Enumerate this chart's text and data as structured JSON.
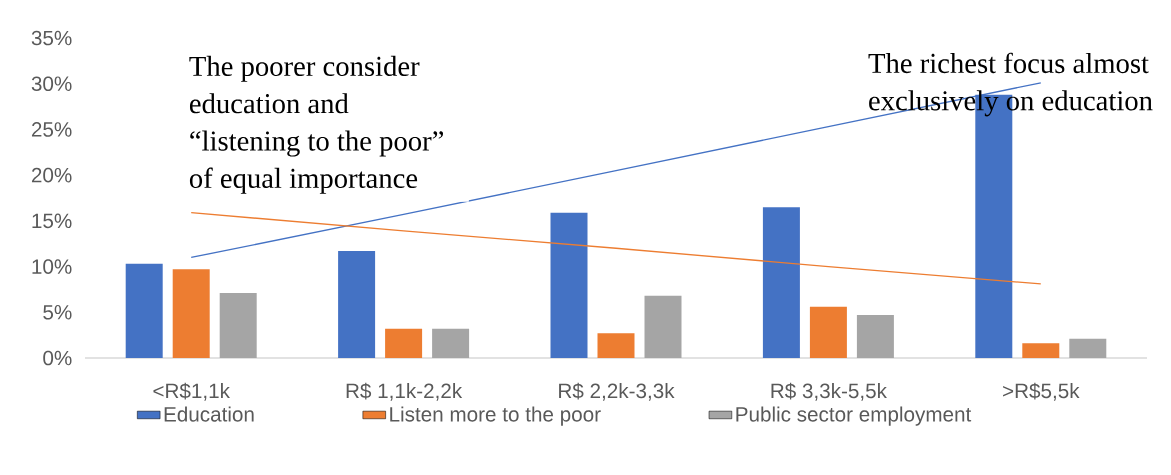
{
  "chart_data": {
    "type": "bar",
    "categories": [
      "<R$1,1k",
      "R$ 1,1k-2,2k",
      "R$ 2,2k-3,3k",
      "R$ 3,3k-5,5k",
      ">R$5,5k"
    ],
    "series": [
      {
        "name": "Education",
        "color": "#4472c4",
        "values": [
          10.3,
          11.7,
          15.9,
          16.5,
          28.8
        ]
      },
      {
        "name": "Listen more to the poor",
        "color": "#ed7d31",
        "values": [
          9.7,
          3.2,
          2.7,
          5.6,
          1.6
        ]
      },
      {
        "name": "Public sector employment",
        "color": "#a5a5a5",
        "values": [
          7.1,
          3.2,
          6.8,
          4.7,
          2.1
        ]
      },
      {
        "type": "line",
        "color": "#4472c4",
        "values": [
          11.0,
          15.7,
          20.5,
          25.3,
          30.1
        ]
      },
      {
        "type": "line",
        "color": "#ed7d31",
        "values": [
          15.9,
          13.9,
          12.0,
          10.0,
          8.1
        ]
      }
    ],
    "ylim": [
      0,
      35
    ],
    "yticks": [
      {
        "value": 0,
        "label": "0%"
      },
      {
        "value": 5,
        "label": "5%"
      },
      {
        "value": 10,
        "label": "10%"
      },
      {
        "value": 15,
        "label": "15%"
      },
      {
        "value": 20,
        "label": "20%"
      },
      {
        "value": 25,
        "label": "25%"
      },
      {
        "value": 30,
        "label": "30%"
      },
      {
        "value": 35,
        "label": "35%"
      }
    ],
    "annotations": [
      "The poorer consider education and “listening to the poor” of equal importance",
      "The richest focus almost exclusively on education"
    ],
    "legend": "bottom"
  }
}
